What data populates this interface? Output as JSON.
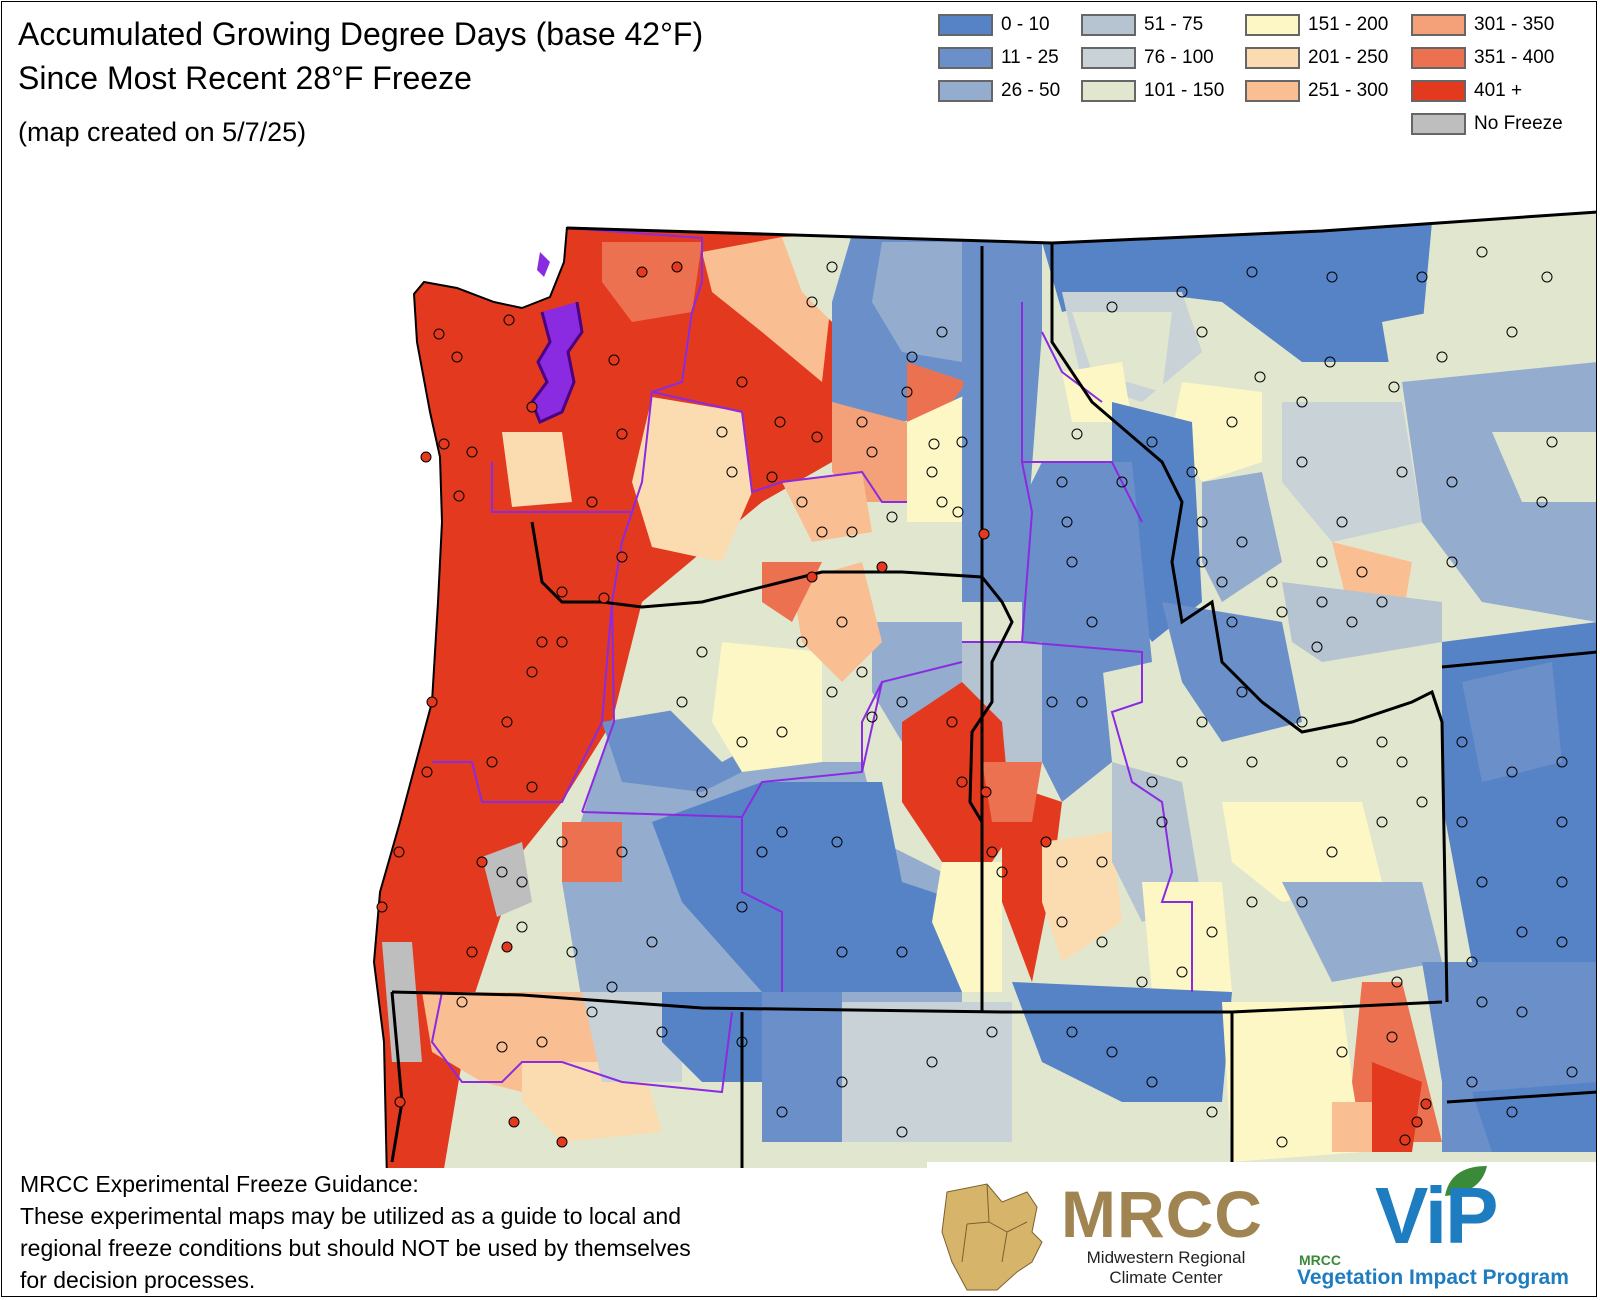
{
  "title": {
    "line1": "Accumulated Growing Degree Days (base 42°F)",
    "line2": "Since Most Recent 28°F Freeze",
    "created": "(map created on 5/7/25)"
  },
  "legend": [
    {
      "label": "0 - 10",
      "color": "#5683c6"
    },
    {
      "label": "11 - 25",
      "color": "#6b90c9"
    },
    {
      "label": "26 - 50",
      "color": "#94acce"
    },
    {
      "label": "51 - 75",
      "color": "#b6c3d1"
    },
    {
      "label": "76 - 100",
      "color": "#c9d2d6"
    },
    {
      "label": "101 - 150",
      "color": "#e1e6cf"
    },
    {
      "label": "151 - 200",
      "color": "#fdf7c6"
    },
    {
      "label": "201 - 250",
      "color": "#fbdcb1"
    },
    {
      "label": "251 - 300",
      "color": "#f9bf93"
    },
    {
      "label": "301 - 350",
      "color": "#f4a079"
    },
    {
      "label": "351 - 400",
      "color": "#ec7151"
    },
    {
      "label": "401 +",
      "color": "#e3391f"
    },
    {
      "label": "No Freeze",
      "color": "#bebebe"
    }
  ],
  "map": {
    "region": "Pacific Northwest",
    "colors": {
      "ocean": "#ffffff",
      "state_border": "#000000",
      "climate_division": "#8a2be2",
      "county_line": "#6d6d6d",
      "station_fill_hot": "#e3391f"
    }
  },
  "disclaimer": {
    "heading": "MRCC Experimental Freeze Guidance:",
    "lines": [
      "These experimental maps may be utilized as a guide to local and",
      "regional freeze conditions but should NOT be used by themselves",
      "for decision processes."
    ]
  },
  "logos": {
    "mrcc": {
      "word": "MRCC",
      "name_line1": "Midwestern Regional",
      "name_line2": "Climate Center",
      "color": "#a08552"
    },
    "vip": {
      "word": "ViP",
      "small": "MRCC",
      "name": "Vegetation Impact Program",
      "color": "#1e7cc0",
      "leaf": "#3a8a3a"
    }
  }
}
